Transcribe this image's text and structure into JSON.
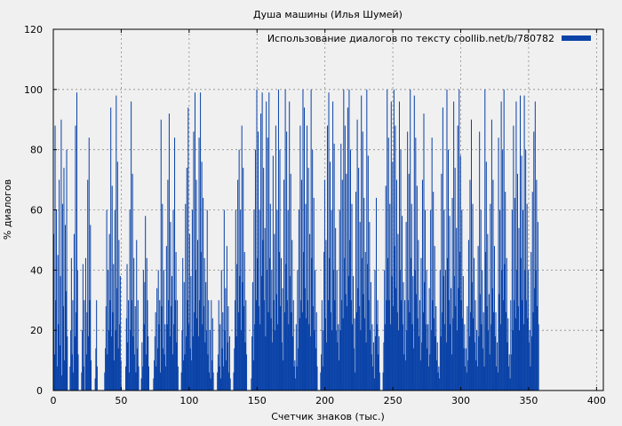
{
  "chart_data": {
    "type": "bar",
    "title": "Душа машины (Илья Шумей)",
    "xlabel": "Счетчик знаков (тыс.)",
    "ylabel": "% диалогов",
    "xlim": [
      0,
      405
    ],
    "ylim": [
      0,
      120
    ],
    "x_ticks": [
      0,
      50,
      100,
      150,
      200,
      250,
      300,
      350,
      400
    ],
    "y_ticks": [
      0,
      20,
      40,
      60,
      80,
      100,
      120
    ],
    "grid": true,
    "legend_position": "top-right",
    "bar_color": "#0b43a8",
    "series": [
      {
        "name": "Использование диалогов по тексту coollib.net/b/780782",
        "x_step": 0.5,
        "values": [
          52,
          12,
          88,
          30,
          60,
          8,
          45,
          22,
          70,
          15,
          38,
          90,
          5,
          62,
          28,
          74,
          10,
          55,
          33,
          80,
          18,
          0,
          0,
          0,
          8,
          20,
          44,
          12,
          30,
          6,
          52,
          18,
          88,
          26,
          99,
          40,
          12,
          0,
          0,
          0,
          0,
          6,
          20,
          42,
          8,
          30,
          0,
          44,
          12,
          26,
          70,
          18,
          84,
          30,
          55,
          10,
          0,
          0,
          0,
          0,
          0,
          4,
          14,
          30,
          8,
          0,
          0,
          0,
          0,
          0,
          0,
          0,
          0,
          0,
          0,
          6,
          14,
          28,
          60,
          12,
          40,
          20,
          52,
          30,
          94,
          18,
          68,
          26,
          42,
          10,
          60,
          20,
          98,
          34,
          76,
          14,
          50,
          22,
          38,
          10,
          0,
          0,
          0,
          0,
          0,
          0,
          8,
          24,
          42,
          16,
          30,
          6,
          60,
          20,
          96,
          30,
          72,
          18,
          44,
          12,
          28,
          6,
          50,
          14,
          30,
          8,
          0,
          0,
          0,
          4,
          16,
          8,
          40,
          22,
          36,
          58,
          12,
          44,
          30,
          18,
          8,
          0,
          0,
          0,
          0,
          0,
          0,
          4,
          10,
          18,
          26,
          8,
          34,
          14,
          40,
          22,
          30,
          6,
          90,
          28,
          62,
          14,
          40,
          12,
          22,
          8,
          48,
          22,
          70,
          30,
          92,
          18,
          56,
          28,
          38,
          12,
          60,
          22,
          84,
          30,
          46,
          16,
          30,
          8,
          0,
          0,
          0,
          0,
          6,
          20,
          44,
          10,
          36,
          12,
          62,
          18,
          74,
          30,
          94,
          22,
          52,
          14,
          38,
          10,
          60,
          18,
          86,
          26,
          99,
          40,
          70,
          24,
          50,
          18,
          84,
          30,
          99,
          46,
          76,
          22,
          64,
          28,
          44,
          16,
          36,
          20,
          60,
          12,
          30,
          6,
          20,
          4,
          30,
          10,
          24,
          6,
          0,
          0,
          0,
          0,
          0,
          6,
          12,
          30,
          8,
          22,
          4,
          40,
          14,
          26,
          8,
          60,
          20,
          34,
          10,
          48,
          16,
          28,
          6,
          18,
          4,
          0,
          0,
          0,
          0,
          6,
          14,
          30,
          60,
          18,
          42,
          70,
          26,
          80,
          38,
          60,
          20,
          88,
          36,
          74,
          28,
          46,
          16,
          30,
          12,
          0,
          0,
          0,
          0,
          0,
          0,
          4,
          18,
          36,
          10,
          60,
          22,
          80,
          30,
          100,
          44,
          86,
          28,
          60,
          22,
          92,
          38,
          99,
          50,
          74,
          30,
          54,
          18,
          96,
          40,
          84,
          26,
          99,
          44,
          62,
          24,
          40,
          16,
          78,
          30,
          52,
          20,
          88,
          32,
          60,
          22,
          100,
          46,
          80,
          28,
          44,
          16,
          34,
          10,
          70,
          26,
          100,
          42,
          86,
          30,
          60,
          22,
          96,
          38,
          72,
          26,
          50,
          18,
          30,
          8,
          10,
          4,
          22,
          8,
          40,
          14,
          60,
          24,
          88,
          30,
          70,
          26,
          100,
          46,
          94,
          34,
          62,
          24,
          88,
          30,
          74,
          22,
          52,
          18,
          100,
          44,
          80,
          28,
          64,
          20,
          40,
          14,
          26,
          8,
          0,
          0,
          0,
          0,
          6,
          12,
          30,
          8,
          20,
          46,
          70,
          24,
          50,
          16,
          88,
          30,
          99,
          44,
          76,
          26,
          60,
          20,
          96,
          40,
          82,
          30,
          54,
          20,
          40,
          16,
          22,
          10,
          60,
          20,
          82,
          30,
          70,
          24,
          100,
          44,
          88,
          32,
          72,
          28,
          94,
          38,
          100,
          50,
          80,
          30,
          62,
          22,
          38,
          14,
          24,
          6,
          66,
          26,
          90,
          34,
          74,
          28,
          56,
          20,
          98,
          44,
          86,
          32,
          64,
          24,
          46,
          16,
          100,
          42,
          78,
          30,
          56,
          20,
          36,
          12,
          22,
          8,
          16,
          4,
          40,
          18,
          64,
          22,
          30,
          12,
          18,
          6,
          0,
          0,
          0,
          0,
          6,
          16,
          40,
          22,
          68,
          30,
          100,
          44,
          84,
          30,
          62,
          22,
          96,
          38,
          76,
          28,
          100,
          48,
          88,
          34,
          70,
          26,
          52,
          20,
          96,
          40,
          80,
          30,
          58,
          22,
          36,
          12,
          30,
          10,
          56,
          20,
          86,
          30,
          72,
          26,
          100,
          44,
          62,
          22,
          38,
          14,
          98,
          40,
          84,
          32,
          68,
          24,
          50,
          18,
          30,
          10,
          44,
          16,
          70,
          26,
          92,
          36,
          60,
          22,
          40,
          14,
          22,
          8,
          34,
          12,
          60,
          20,
          84,
          30,
          66,
          24,
          48,
          18,
          28,
          10,
          16,
          6,
          8,
          4,
          40,
          18,
          72,
          26,
          94,
          38,
          60,
          22,
          40,
          16,
          100,
          44,
          80,
          30,
          58,
          22,
          34,
          12,
          64,
          24,
          96,
          38,
          74,
          28,
          54,
          20,
          88,
          34,
          100,
          46,
          78,
          30,
          60,
          24,
          38,
          14,
          22,
          8,
          14,
          6,
          28,
          10,
          50,
          18,
          70,
          26,
          90,
          36,
          62,
          24,
          44,
          16,
          30,
          10,
          20,
          8,
          48,
          18,
          86,
          32,
          60,
          22,
          40,
          14,
          26,
          8,
          100,
          46,
          76,
          28,
          52,
          20,
          32,
          12,
          62,
          22,
          90,
          34,
          70,
          26,
          48,
          18,
          26,
          8,
          16,
          6,
          84,
          32,
          60,
          22,
          96,
          40,
          80,
          30,
          100,
          42,
          66,
          26,
          44,
          16,
          24,
          8,
          12,
          4,
          30,
          12,
          60,
          20,
          88,
          30,
          64,
          24,
          96,
          40,
          72,
          28,
          54,
          20,
          98,
          44,
          78,
          30,
          60,
          22,
          98,
          40,
          80,
          30,
          62,
          24,
          40,
          16,
          20,
          8,
          46,
          18,
          66,
          26,
          86,
          34,
          96,
          40,
          70,
          28,
          56,
          22
        ]
      }
    ]
  }
}
